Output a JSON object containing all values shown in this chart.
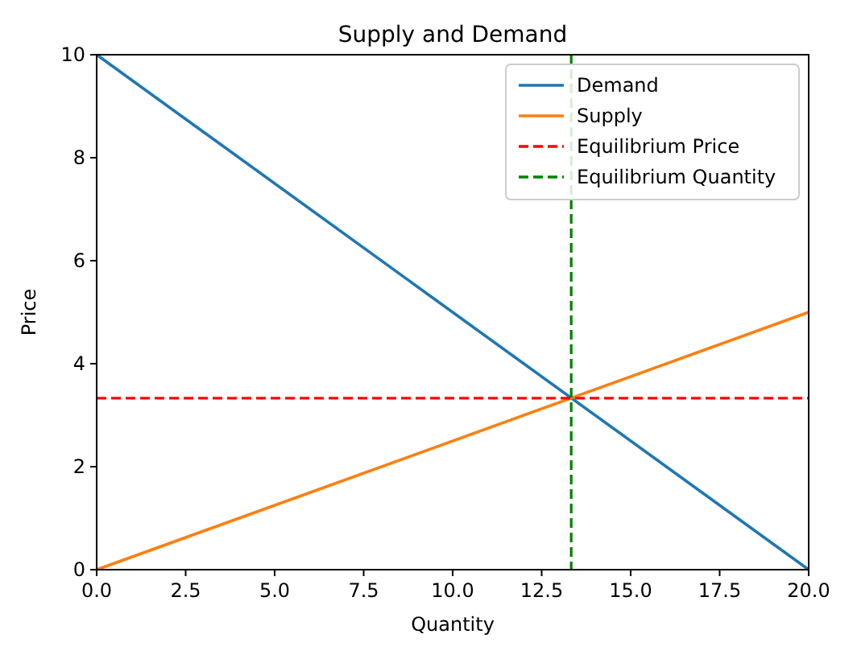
{
  "chart_data": {
    "type": "line",
    "title": "Supply and Demand",
    "xlabel": "Quantity",
    "ylabel": "Price",
    "series": [
      {
        "name": "Demand",
        "color": "#1f77b4",
        "values": [
          10,
          0
        ]
      },
      {
        "name": "Supply",
        "color": "#ff7f0e",
        "values": [
          0,
          5
        ]
      }
    ],
    "ref_lines": [
      {
        "axis": "y",
        "value": 3.33,
        "label": "Equilibrium Price",
        "color": "#ff0000",
        "line_style": "dashed"
      },
      {
        "axis": "x",
        "value": 13.33,
        "label": "Equilibrium Quantity",
        "color": "#008000",
        "line_style": "dashed"
      }
    ],
    "x": [
      0,
      20
    ],
    "xlim": [
      0,
      20
    ],
    "ylim": [
      0,
      10
    ],
    "xticks": [
      {
        "value": 0,
        "label": "0.0"
      },
      {
        "value": 2.5,
        "label": "2.5"
      },
      {
        "value": 5,
        "label": "5.0"
      },
      {
        "value": 7.5,
        "label": "7.5"
      },
      {
        "value": 10,
        "label": "10.0"
      },
      {
        "value": 12.5,
        "label": "12.5"
      },
      {
        "value": 15,
        "label": "15.0"
      },
      {
        "value": 17.5,
        "label": "17.5"
      },
      {
        "value": 20,
        "label": "20.0"
      }
    ],
    "yticks": [
      0,
      2,
      4,
      6,
      8,
      10
    ],
    "legend": "top right",
    "grid": false,
    "marker": "none",
    "line_style": "solid"
  }
}
